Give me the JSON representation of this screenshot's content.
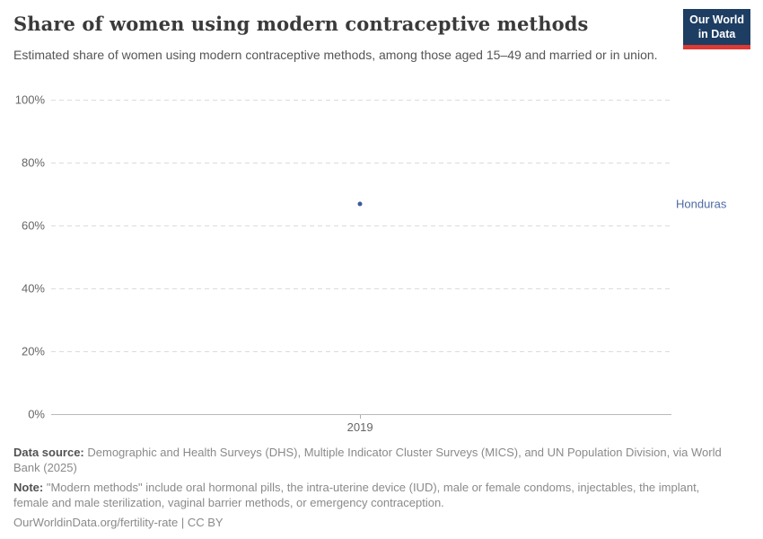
{
  "header": {
    "title": "Share of women using modern contraceptive methods",
    "subtitle": "Estimated share of women using modern contraceptive methods, among those aged 15–49 and married or in union.",
    "logo": {
      "line1": "Our World",
      "line2": "in Data"
    }
  },
  "chart_data": {
    "type": "scatter",
    "title": "Share of women using modern contraceptive methods",
    "x": [
      2019
    ],
    "x_ticks": [
      "2019"
    ],
    "y_ticks": [
      "100%",
      "80%",
      "60%",
      "40%",
      "20%",
      "0%"
    ],
    "ylim": [
      0,
      100
    ],
    "grid": "horizontal-dashed",
    "legend_position": "right-of-plot",
    "series": [
      {
        "name": "Honduras",
        "color": "#3d5a9b",
        "label_color": "#4c6aa5",
        "points": [
          {
            "x": 2019,
            "y": 66.6
          }
        ]
      }
    ],
    "entity_label": "Honduras"
  },
  "footer": {
    "data_source_label": "Data source:",
    "data_source_text": "Demographic and Health Surveys (DHS), Multiple Indicator Cluster Surveys (MICS), and UN Population Division, via World Bank (2025)",
    "note_label": "Note:",
    "note_text": "\"Modern methods\" include oral hormonal pills, the intra-uterine device (IUD), male or female condoms, injectables, the implant, female and male sterilization, vaginal barrier methods, or emergency contraception.",
    "link": "OurWorldinData.org/fertility-rate | CC BY"
  },
  "colors": {
    "accent_blue": "#4c6aa5",
    "point_blue": "#3d5a9b",
    "logo_navy": "#1d3d63",
    "logo_red": "#dc3a33",
    "title_text": "#3a3a3a",
    "subtitle_text": "#555555",
    "axis_label": "#666666",
    "gridline": "#dcdcdc",
    "footer_text": "#8a8a8a"
  }
}
